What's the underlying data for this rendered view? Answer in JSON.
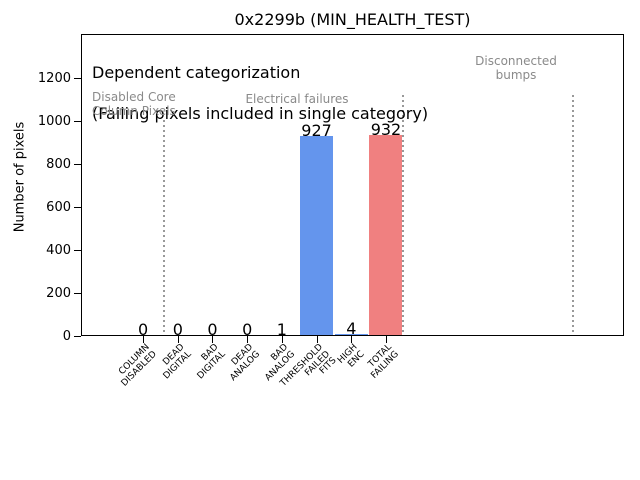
{
  "chart_data": {
    "type": "bar",
    "title": "0x2299b (MIN_HEALTH_TEST)",
    "ylabel": "Number of pixels",
    "xlabel": "",
    "categories": [
      "COLUMN\nDISABLED",
      "DEAD\nDIGITAL",
      "BAD\nDIGITAL",
      "DEAD\nANALOG",
      "BAD\nANALOG",
      "THRESHOLD\nFAILED\nFITS",
      "HIGH\nENC",
      "TOTAL\nFAILING"
    ],
    "values": [
      0,
      0,
      0,
      0,
      1,
      927,
      4,
      932
    ],
    "value_labels": [
      "0",
      "0",
      "0",
      "0",
      "1",
      "927",
      "4",
      "932"
    ],
    "bar_colors": [
      "#6495ed",
      "#6495ed",
      "#6495ed",
      "#6495ed",
      "#6495ed",
      "#6495ed",
      "#6495ed",
      "#f08080"
    ],
    "yticks": [
      0,
      200,
      400,
      600,
      800,
      1000,
      1200
    ],
    "ylim": [
      0,
      1410
    ],
    "xlim": [
      -1.79,
      13.86
    ],
    "grid": false,
    "legend": null,
    "vlines": [
      {
        "x": 0.6,
        "ymax": 1010
      },
      {
        "x": 7.49,
        "ymax": 1125
      },
      {
        "x": 12.39,
        "ymax": 1125
      }
    ],
    "annotations": {
      "dependent_line1": "Dependent categorization",
      "dependent_line2": "(Failing pixels included in single category)",
      "disabled_core": "Disabled Core\nColumn Pixels",
      "electrical": "Electrical failures",
      "disconnected": "Disconnected\nbumps"
    },
    "colors": {
      "bar_blue": "#6495ed",
      "bar_red": "#f08080",
      "annotation_gray": "#8a8a8a",
      "vline_gray": "#999999",
      "axis_black": "#000000"
    }
  }
}
